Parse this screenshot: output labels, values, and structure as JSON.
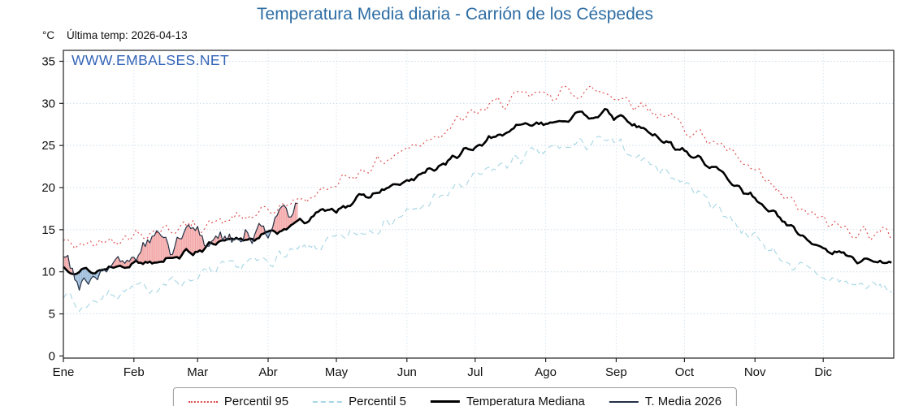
{
  "header": {
    "unit_label": "°C",
    "last_temp_label": "Última temp: 2026-04-13"
  },
  "watermark": "WWW.EMBALSES.NET",
  "chart_data": {
    "type": "line",
    "title": "Temperatura Media diaria - Carrión de los Céspedes",
    "xlabel": "",
    "ylabel": "°C",
    "ylim": [
      0,
      35
    ],
    "yticks": [
      0,
      5,
      10,
      15,
      20,
      25,
      30,
      35
    ],
    "grid": true,
    "legend_position": "bottom",
    "x_range_days": 365,
    "months": [
      "Ene",
      "Feb",
      "Mar",
      "Abr",
      "May",
      "Jun",
      "Jul",
      "Ago",
      "Sep",
      "Oct",
      "Nov",
      "Dic"
    ],
    "month_start_days": [
      0,
      31,
      59,
      90,
      120,
      151,
      181,
      212,
      243,
      273,
      304,
      334
    ],
    "series": [
      {
        "name": "Percentil 95",
        "style": "dotted",
        "color": "#dd4444",
        "jitter": 0.8,
        "end_day": 364,
        "weekly_values": [
          13.6,
          13.0,
          13.4,
          14.0,
          14.3,
          14.6,
          15.0,
          15.2,
          15.4,
          15.6,
          16.0,
          16.3,
          16.6,
          17.2,
          17.9,
          18.6,
          19.4,
          20.3,
          21.3,
          22.3,
          23.2,
          24.1,
          25.0,
          26.0,
          27.0,
          28.0,
          29.0,
          29.8,
          30.4,
          30.8,
          31.0,
          31.2,
          31.4,
          31.5,
          31.3,
          30.8,
          30.0,
          29.2,
          28.3,
          27.3,
          26.3,
          25.2,
          23.8,
          22.3,
          20.8,
          19.2,
          17.8,
          16.6,
          15.8,
          15.2,
          14.8,
          14.6,
          14.5
        ]
      },
      {
        "name": "Percentil 5",
        "style": "dashed",
        "color": "#a6d6e4",
        "jitter": 0.8,
        "end_day": 364,
        "weekly_values": [
          8.0,
          5.5,
          6.8,
          7.4,
          7.8,
          8.0,
          8.4,
          8.8,
          9.2,
          9.8,
          10.3,
          10.7,
          11.0,
          11.5,
          12.0,
          12.5,
          13.0,
          13.6,
          14.3,
          15.0,
          15.7,
          16.4,
          17.2,
          18.2,
          19.2,
          20.2,
          21.2,
          22.2,
          23.0,
          23.7,
          24.2,
          24.6,
          25.0,
          25.3,
          25.5,
          24.8,
          23.8,
          22.8,
          21.8,
          20.6,
          19.2,
          17.8,
          16.2,
          14.6,
          13.2,
          11.8,
          10.6,
          9.8,
          9.2,
          8.8,
          8.4,
          8.2,
          8.0
        ]
      },
      {
        "name": "Temperatura Mediana",
        "style": "solid-thick",
        "color": "#000000",
        "jitter": 0.45,
        "end_day": 364,
        "weekly_values": [
          10.6,
          10.2,
          10.0,
          10.6,
          11.0,
          11.2,
          11.5,
          11.9,
          12.3,
          13.0,
          13.4,
          13.8,
          14.1,
          14.6,
          15.3,
          16.0,
          16.8,
          17.5,
          18.2,
          18.9,
          19.6,
          20.3,
          21.0,
          22.0,
          23.0,
          24.0,
          25.0,
          26.0,
          26.8,
          27.4,
          27.8,
          28.0,
          28.3,
          28.6,
          28.8,
          28.2,
          27.3,
          26.3,
          25.3,
          24.3,
          23.3,
          22.2,
          20.8,
          19.3,
          17.8,
          16.2,
          14.8,
          13.6,
          12.6,
          12.0,
          11.5,
          11.2,
          11.0
        ]
      },
      {
        "name": "T. Media 2026",
        "style": "solid-thin",
        "color": "#233044",
        "jitter": 1.4,
        "end_day": 103,
        "fill_above": "#f08f8f",
        "fill_below": "#7fa8d0",
        "weekly_values": [
          12.0,
          9.2,
          9.8,
          10.4,
          11.2,
          12.8,
          14.3,
          12.8,
          15.2,
          13.6,
          14.6,
          13.2,
          14.8,
          15.4,
          16.8,
          17.2
        ]
      }
    ]
  }
}
